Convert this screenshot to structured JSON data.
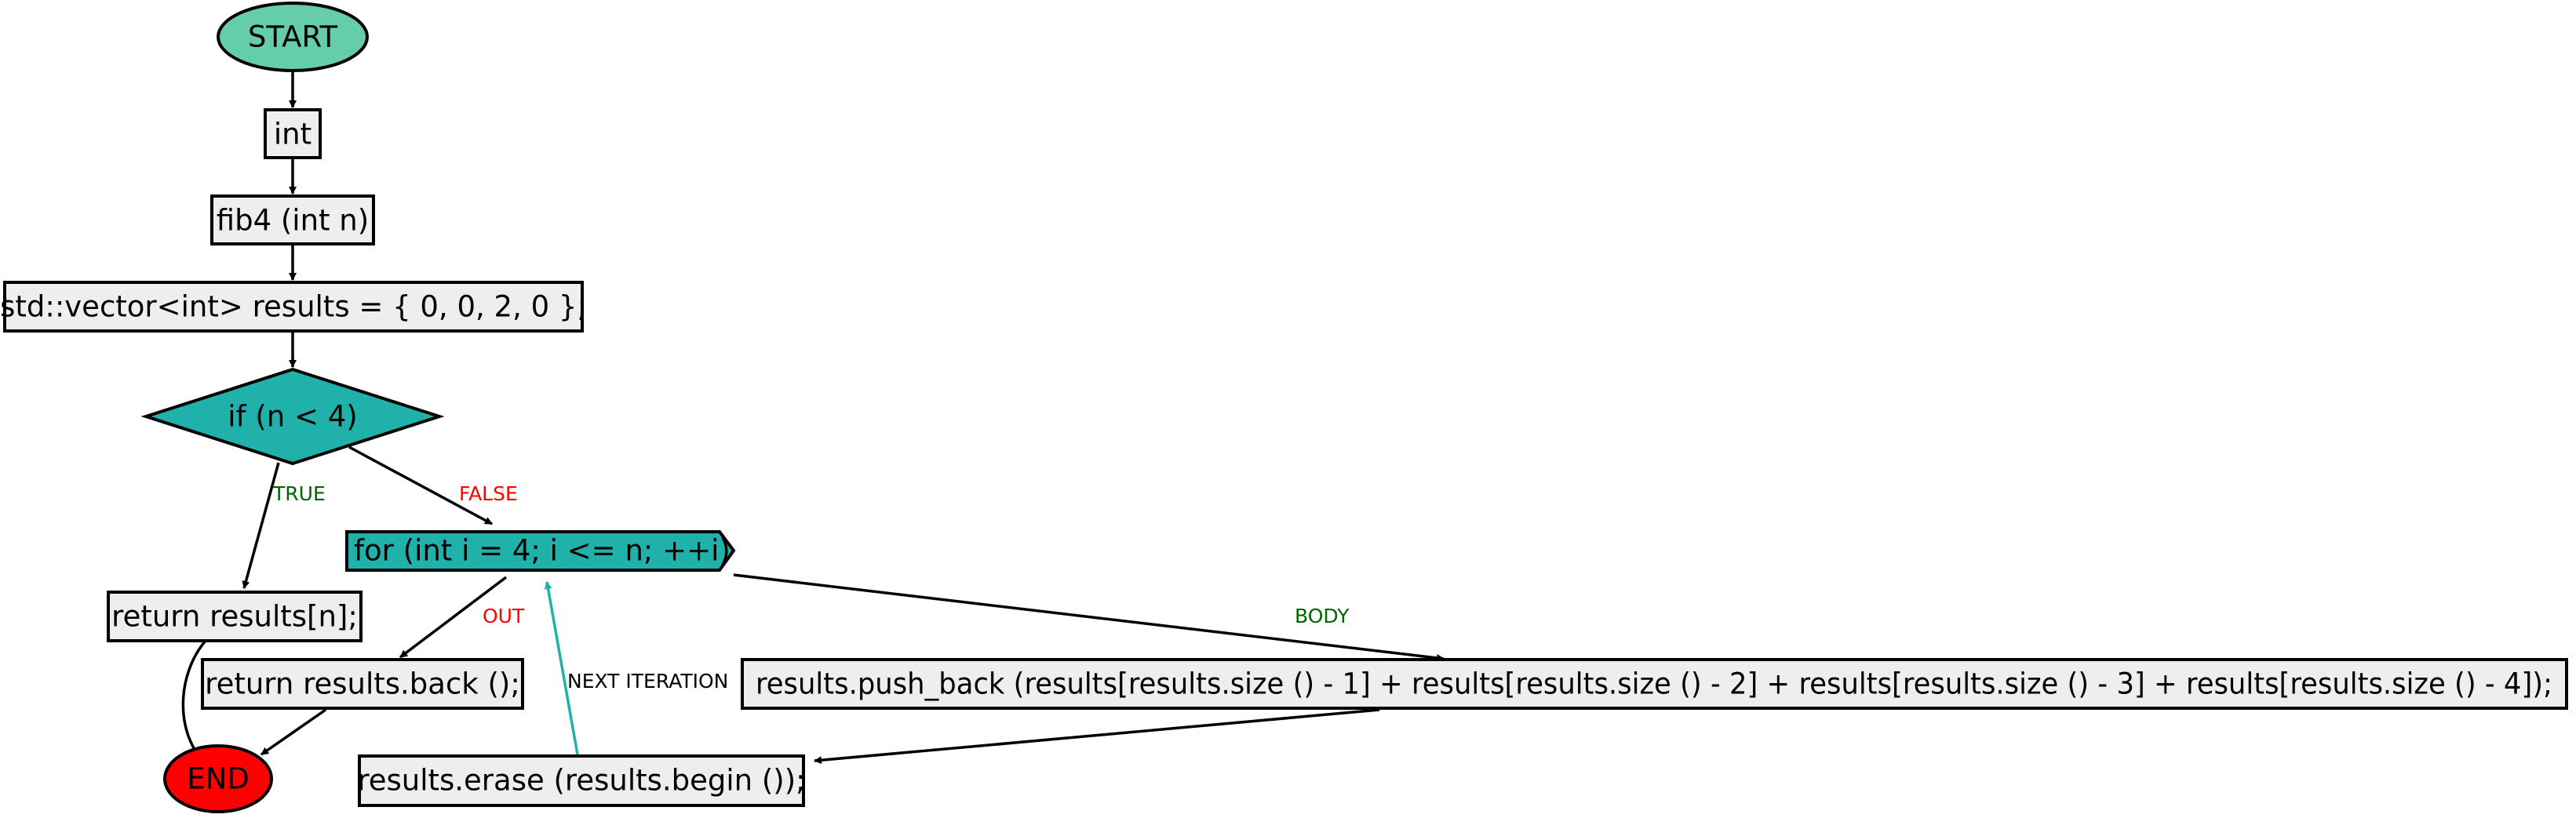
{
  "nodes": {
    "start": "START",
    "int_type": "int",
    "signature": "fib4 (int n)",
    "init": "std::vector<int> results = { 0, 0, 2, 0 };",
    "condition": "if (n < 4)",
    "return_n": "return results[n];",
    "for_loop": "for (int i = 4; i <= n; ++i)",
    "return_back": "return results.back ();",
    "push_back": "results.push_back (results[results.size () - 1] + results[results.size () - 2] + results[results.size () - 3] + results[results.size () - 4]);",
    "erase": "results.erase (results.begin ());",
    "end": "END"
  },
  "edge_labels": {
    "true": "TRUE",
    "false": "FALSE",
    "out": "OUT",
    "body": "BODY",
    "next_iteration": "NEXT ITERATION"
  },
  "colors": {
    "terminal_start": "#66cdaa",
    "terminal_end": "#ff0000",
    "decision": "#20b2aa",
    "statement": "#eeeeee",
    "true_label": "#006400",
    "false_label": "#ff0000",
    "loop_back_edge": "#20b2aa"
  }
}
